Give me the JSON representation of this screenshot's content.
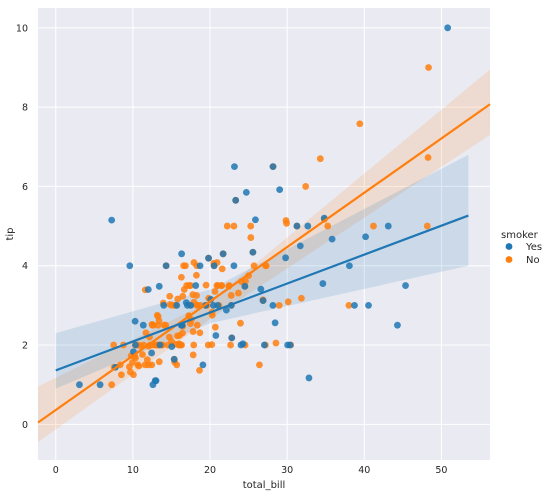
{
  "chart_data": {
    "type": "scatter",
    "subtype": "regression (lmplot) with 95% confidence bands",
    "xlabel": "total_bill",
    "ylabel": "tip",
    "xlim": [
      -2.3,
      56.3
    ],
    "ylim": [
      -0.9,
      10.5
    ],
    "xticks": [
      "0",
      "10",
      "20",
      "30",
      "40",
      "50"
    ],
    "yticks": [
      "0",
      "2",
      "4",
      "6",
      "8",
      "10"
    ],
    "grid": true,
    "style": "seaborn darkgrid",
    "legend": {
      "title": "smoker",
      "placement": "right",
      "entries": [
        "Yes",
        "No"
      ]
    },
    "series": [
      {
        "name": "Yes",
        "color": "#1f77b4",
        "regression": {
          "x_range": [
            3.07,
            50.81
          ],
          "intercept": 1.36,
          "slope": 0.073
        },
        "ci_band": {
          "x": [
            0,
            20,
            53.5
          ],
          "lower": [
            0.9,
            2.55,
            4.0
          ],
          "upper": [
            2.3,
            3.4,
            6.8
          ]
        },
        "points": [
          [
            3.07,
            1.0
          ],
          [
            5.75,
            1.0
          ],
          [
            7.25,
            5.15
          ],
          [
            9.6,
            4.0
          ],
          [
            7.74,
            1.44
          ],
          [
            10.07,
            1.83
          ],
          [
            10.34,
            2.0
          ],
          [
            12.6,
            1.0
          ],
          [
            13.0,
            1.1
          ],
          [
            12.9,
            1.1
          ],
          [
            14.31,
            4.0
          ],
          [
            11.35,
            2.5
          ],
          [
            12.0,
            3.4
          ],
          [
            13.42,
            3.48
          ],
          [
            15.36,
            1.64
          ],
          [
            15.69,
            3.0
          ],
          [
            16.27,
            2.5
          ],
          [
            16.4,
            2.5
          ],
          [
            17.07,
            3.0
          ],
          [
            17.51,
            3.0
          ],
          [
            18.15,
            3.5
          ],
          [
            18.71,
            4.0
          ],
          [
            19.44,
            3.0
          ],
          [
            19.81,
            4.19
          ],
          [
            20.08,
            3.15
          ],
          [
            20.45,
            3.0
          ],
          [
            20.53,
            4.0
          ],
          [
            21.01,
            3.0
          ],
          [
            22.12,
            2.88
          ],
          [
            22.76,
            3.0
          ],
          [
            23.1,
            4.0
          ],
          [
            23.33,
            5.65
          ],
          [
            24.01,
            2.0
          ],
          [
            24.27,
            2.03
          ],
          [
            24.71,
            5.85
          ],
          [
            25.56,
            4.34
          ],
          [
            25.89,
            5.16
          ],
          [
            26.59,
            3.41
          ],
          [
            27.05,
            2.0
          ],
          [
            28.15,
            3.0
          ],
          [
            28.17,
            6.5
          ],
          [
            28.44,
            2.56
          ],
          [
            29.03,
            5.92
          ],
          [
            30.06,
            2.0
          ],
          [
            30.4,
            2.0
          ],
          [
            31.27,
            5.0
          ],
          [
            31.71,
            4.5
          ],
          [
            32.68,
            5.0
          ],
          [
            32.83,
            1.17
          ],
          [
            34.63,
            3.55
          ],
          [
            34.81,
            5.2
          ],
          [
            38.07,
            4.0
          ],
          [
            38.73,
            3.0
          ],
          [
            40.17,
            4.73
          ],
          [
            40.55,
            3.0
          ],
          [
            43.11,
            5.0
          ],
          [
            44.3,
            2.5
          ],
          [
            45.35,
            3.5
          ],
          [
            50.81,
            10.0
          ],
          [
            23.17,
            6.5
          ],
          [
            15.04,
            1.96
          ],
          [
            14.0,
            3.0
          ],
          [
            10.29,
            2.6
          ],
          [
            22.82,
            2.18
          ],
          [
            24.52,
            3.48
          ],
          [
            26.88,
            3.12
          ],
          [
            35.83,
            4.67
          ],
          [
            29.8,
            4.2
          ],
          [
            19.08,
            1.5
          ],
          [
            16.32,
            4.3
          ],
          [
            13.51,
            2.0
          ],
          [
            21.7,
            4.3
          ],
          [
            12.43,
            1.8
          ],
          [
            16.93,
            3.07
          ],
          [
            20.76,
            2.24
          ]
        ]
      },
      {
        "name": "No",
        "color": "#ff7f0e",
        "regression": {
          "x_range": [
            7.25,
            48.33
          ],
          "intercept": 0.36,
          "slope": 0.137
        },
        "ci_band": {
          "x": [
            -2.3,
            20,
            56.3
          ],
          "lower": [
            -0.45,
            2.65,
            7.3
          ],
          "upper": [
            0.95,
            3.1,
            8.95
          ]
        },
        "points": [
          [
            7.25,
            1.0
          ],
          [
            7.51,
            2.0
          ],
          [
            8.35,
            1.5
          ],
          [
            8.51,
            1.25
          ],
          [
            8.77,
            2.0
          ],
          [
            9.55,
            1.45
          ],
          [
            9.68,
            1.32
          ],
          [
            9.78,
            1.73
          ],
          [
            10.07,
            1.25
          ],
          [
            10.27,
            1.71
          ],
          [
            10.33,
            1.67
          ],
          [
            10.34,
            2.0
          ],
          [
            10.63,
            2.0
          ],
          [
            10.65,
            1.5
          ],
          [
            10.77,
            1.47
          ],
          [
            11.02,
            1.98
          ],
          [
            11.38,
            2.0
          ],
          [
            11.59,
            1.5
          ],
          [
            11.87,
            1.63
          ],
          [
            12.02,
            1.97
          ],
          [
            12.26,
            2.0
          ],
          [
            12.46,
            1.5
          ],
          [
            12.54,
            2.5
          ],
          [
            12.66,
            2.5
          ],
          [
            12.69,
            2.0
          ],
          [
            12.74,
            2.01
          ],
          [
            13.0,
            2.0
          ],
          [
            13.03,
            2.0
          ],
          [
            13.27,
            2.5
          ],
          [
            13.28,
            2.72
          ],
          [
            13.37,
            2.0
          ],
          [
            13.81,
            2.0
          ],
          [
            13.94,
            3.06
          ],
          [
            14.07,
            2.5
          ],
          [
            14.26,
            2.5
          ],
          [
            14.52,
            2.0
          ],
          [
            14.73,
            2.2
          ],
          [
            14.78,
            3.23
          ],
          [
            15.01,
            2.09
          ],
          [
            15.06,
            3.0
          ],
          [
            15.42,
            1.57
          ],
          [
            15.48,
            2.02
          ],
          [
            15.53,
            3.0
          ],
          [
            15.77,
            2.23
          ],
          [
            15.98,
            2.03
          ],
          [
            16.0,
            2.0
          ],
          [
            16.29,
            3.71
          ],
          [
            16.31,
            2.0
          ],
          [
            16.45,
            2.47
          ],
          [
            16.58,
            4.0
          ],
          [
            16.66,
            3.4
          ],
          [
            16.97,
            3.5
          ],
          [
            17.26,
            2.74
          ],
          [
            17.29,
            2.71
          ],
          [
            17.46,
            2.54
          ],
          [
            17.59,
            2.64
          ],
          [
            17.78,
            3.27
          ],
          [
            17.81,
            2.34
          ],
          [
            17.82,
            1.75
          ],
          [
            17.92,
            4.08
          ],
          [
            18.24,
            3.76
          ],
          [
            18.26,
            3.25
          ],
          [
            18.29,
            3.0
          ],
          [
            18.35,
            2.5
          ],
          [
            18.43,
            3.0
          ],
          [
            18.64,
            1.36
          ],
          [
            18.69,
            2.31
          ],
          [
            19.49,
            3.51
          ],
          [
            19.65,
            3.0
          ],
          [
            19.77,
            2.0
          ],
          [
            19.82,
            3.18
          ],
          [
            20.23,
            2.01
          ],
          [
            20.27,
            2.83
          ],
          [
            20.29,
            2.75
          ],
          [
            20.65,
            3.35
          ],
          [
            20.69,
            2.45
          ],
          [
            20.92,
            4.08
          ],
          [
            21.01,
            3.5
          ],
          [
            21.16,
            3.0
          ],
          [
            21.5,
            3.5
          ],
          [
            21.58,
            3.92
          ],
          [
            21.7,
            4.3
          ],
          [
            22.23,
            5.0
          ],
          [
            22.42,
            3.48
          ],
          [
            22.49,
            3.5
          ],
          [
            22.67,
            2.0
          ],
          [
            22.75,
            3.25
          ],
          [
            23.68,
            3.31
          ],
          [
            23.95,
            2.55
          ],
          [
            24.06,
            3.6
          ],
          [
            24.55,
            2.0
          ],
          [
            24.59,
            3.61
          ],
          [
            25.0,
            3.75
          ],
          [
            25.28,
            5.0
          ],
          [
            25.71,
            4.0
          ],
          [
            26.41,
            1.5
          ],
          [
            26.86,
            3.14
          ],
          [
            27.2,
            4.0
          ],
          [
            27.28,
            4.0
          ],
          [
            28.55,
            2.05
          ],
          [
            28.97,
            3.0
          ],
          [
            29.85,
            5.14
          ],
          [
            29.93,
            5.07
          ],
          [
            30.46,
            2.0
          ],
          [
            31.27,
            5.0
          ],
          [
            31.85,
            3.18
          ],
          [
            32.4,
            6.0
          ],
          [
            34.3,
            6.7
          ],
          [
            34.83,
            5.17
          ],
          [
            35.26,
            5.0
          ],
          [
            38.01,
            3.0
          ],
          [
            39.42,
            7.58
          ],
          [
            41.19,
            5.0
          ],
          [
            48.17,
            5.0
          ],
          [
            48.27,
            6.73
          ],
          [
            48.33,
            9.0
          ],
          [
            20.08,
            3.15
          ],
          [
            22.82,
            2.18
          ],
          [
            11.24,
            1.76
          ],
          [
            13.13,
            2.0
          ],
          [
            15.95,
            2.0
          ],
          [
            14.31,
            4.0
          ],
          [
            16.04,
            2.24
          ],
          [
            17.47,
            3.5
          ],
          [
            20.9,
            3.5
          ],
          [
            21.5,
            3.5
          ],
          [
            23.1,
            5.0
          ],
          [
            24.52,
            3.48
          ],
          [
            25.29,
            4.71
          ],
          [
            26.88,
            3.12
          ],
          [
            30.14,
            3.09
          ],
          [
            17.92,
            3.08
          ],
          [
            15.36,
            1.64
          ],
          [
            19.44,
            3.0
          ],
          [
            18.28,
            4.0
          ],
          [
            12.03,
            1.5
          ],
          [
            15.81,
            3.16
          ],
          [
            7.56,
            1.44
          ],
          [
            16.82,
            4.0
          ],
          [
            18.78,
            3.0
          ],
          [
            12.16,
            2.2
          ],
          [
            13.42,
            1.58
          ],
          [
            16.21,
            2.0
          ],
          [
            11.61,
            3.39
          ],
          [
            14.83,
            3.02
          ],
          [
            16.4,
            2.5
          ],
          [
            16.43,
            2.3
          ],
          [
            13.16,
            2.75
          ],
          [
            9.94,
            1.56
          ],
          [
            17.31,
            3.5
          ],
          [
            20.49,
            4.06
          ],
          [
            15.69,
            1.5
          ],
          [
            13.39,
            2.61
          ],
          [
            16.47,
            3.23
          ],
          [
            17.51,
            3.0
          ],
          [
            15.38,
            3.0
          ],
          [
            25.56,
            4.34
          ],
          [
            19.81,
            4.19
          ],
          [
            27.18,
            2.0
          ],
          [
            22.76,
            3.0
          ],
          [
            17.89,
            2.0
          ],
          [
            23.33,
            5.65
          ],
          [
            12.48,
            2.52
          ],
          [
            11.69,
            2.31
          ],
          [
            13.81,
            2.0
          ],
          [
            28.17,
            6.5
          ],
          [
            20.53,
            4.0
          ]
        ]
      }
    ]
  }
}
